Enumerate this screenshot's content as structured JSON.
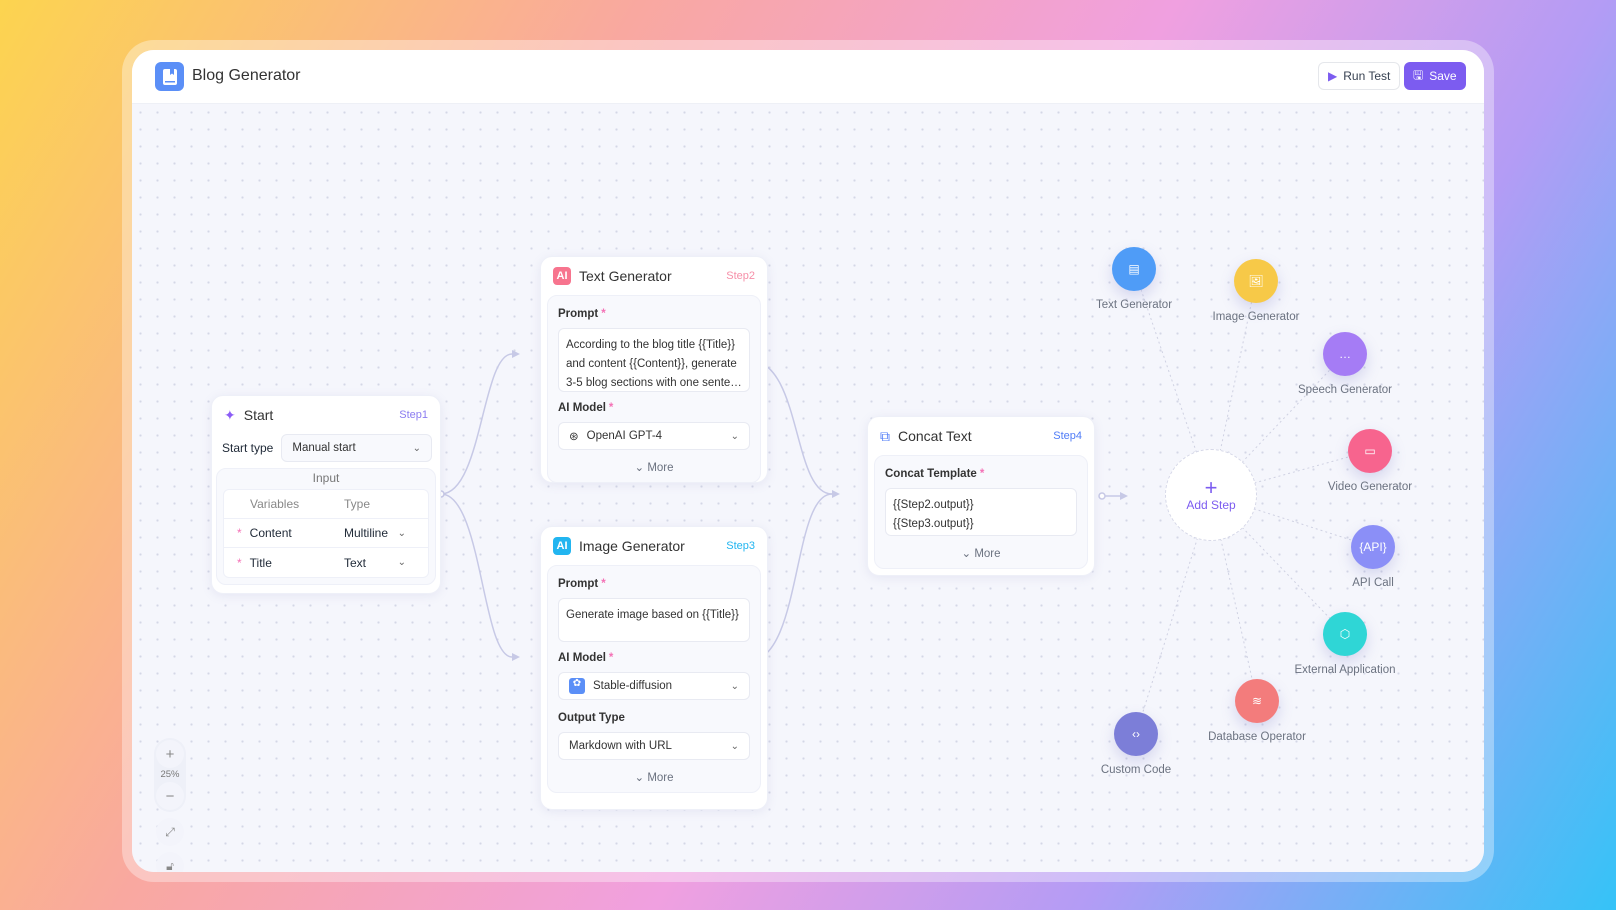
{
  "app": {
    "title": "Blog Generator",
    "run_test": "Run Test",
    "save": "Save",
    "accent": "#7c5cf0"
  },
  "start": {
    "title": "Start",
    "step": "Step1",
    "start_type_label": "Start type",
    "start_type": "Manual start",
    "input_label": "Input",
    "columns": [
      "Variables",
      "Type"
    ],
    "rows": [
      {
        "name": "Content",
        "type": "Multiline"
      },
      {
        "name": "Title",
        "type": "Text"
      }
    ]
  },
  "text_gen": {
    "title": "Text Generator",
    "step": "Step2",
    "prompt_label": "Prompt",
    "prompt": "According to the blog title {{Title}} and content {{Content}}, generate 3-5 blog sections with one sente…",
    "model_label": "AI Model",
    "model": "OpenAI GPT-4",
    "more": "More"
  },
  "image_gen": {
    "title": "Image Generator",
    "step": "Step3",
    "prompt_label": "Prompt",
    "prompt": "Generate image based on {{Title}}",
    "model_label": "AI Model",
    "model": "Stable-diffusion",
    "output_label": "Output Type",
    "output": "Markdown with URL",
    "more": "More"
  },
  "concat": {
    "title": "Concat Text",
    "step": "Step4",
    "template_label": "Concat Template",
    "line1": "{{Step2.output}}",
    "line2": "{{Step3.output}}",
    "more": "More"
  },
  "add_step": {
    "label": "Add Step",
    "plus": "+"
  },
  "step_types": [
    {
      "label": "Text Generator",
      "icon": "document-icon",
      "color": "#4f9cf7"
    },
    {
      "label": "Image Generator",
      "icon": "image-icon",
      "color": "#f7c948"
    },
    {
      "label": "Speech Generator",
      "icon": "chat-icon",
      "color": "#a57cf5"
    },
    {
      "label": "Video Generator",
      "icon": "video-icon",
      "color": "#f7648e"
    },
    {
      "label": "API Call",
      "icon": "api-icon",
      "text": "{API}",
      "color": "#8b8ff7"
    },
    {
      "label": "External Application",
      "icon": "cube-icon",
      "color": "#2fd6d6"
    },
    {
      "label": "Database Operator",
      "icon": "database-icon",
      "color": "#f37c7c"
    },
    {
      "label": "Custom Code",
      "icon": "code-icon",
      "color": "#7c7ed8"
    }
  ],
  "zoom": {
    "level": "25%",
    "in": "+",
    "out": "−"
  }
}
